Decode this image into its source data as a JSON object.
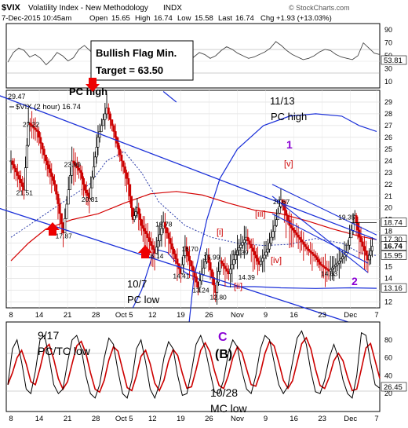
{
  "header": {
    "symbol": "$VIX",
    "name": "Volatility Index - New Methodology",
    "exchange": "INDX",
    "datetime": "7-Dec-2015 10:45am",
    "open_label": "Open",
    "open": "15.65",
    "high_label": "High",
    "high": "16.74",
    "low_label": "Low",
    "low": "15.58",
    "last_label": "Last",
    "last": "16.74",
    "chg_label": "Chg",
    "chg": "+1.93 (+13.03%)",
    "brand": "© StockCharts.com"
  },
  "rsi_panel": {
    "ticks": [
      "90",
      "70",
      "50",
      "30",
      "10"
    ],
    "last_value": "53.81",
    "annotation_line1": "Bullish Flag Min.",
    "annotation_line2": "Target = 63.50"
  },
  "legend": {
    "main": "$VIX (2 hour) 16.74",
    "top_left_value": "29.47"
  },
  "annotations": {
    "pc_high_left": "PC high",
    "pc_high_right_1": "11/13",
    "pc_high_right_2": "PC high",
    "wave_1": "1",
    "wave_2": "2",
    "wave_c": "C",
    "pc_low_1": "10/7",
    "pc_low_2": "PC low",
    "pc_tc_1": "9/17",
    "pc_tc_2": "PC/TC low",
    "b_label": "(B)",
    "mc_low_1": "10/28",
    "mc_low_2": "MC low",
    "wave_v": "[v]",
    "wave_iii": "[iii]",
    "wave_i": "[i]",
    "wave_iv": "[iv]",
    "wave_ii": "[ii]"
  },
  "colors": {
    "candle": "#000000",
    "down_candle": "#cc0000",
    "ma_red": "#d40000",
    "band_blue": "#1a2fd8",
    "trend_blue": "#1a2fd8",
    "wave_purple": "#8a00d4",
    "wave_red": "#cc0000",
    "arrow_red": "#ee0000",
    "grid": "#d0d0d0"
  },
  "chart_data": {
    "type": "line",
    "title": "$VIX (2 hour)",
    "y_ticks": [
      29,
      28,
      27,
      26,
      25,
      24,
      23,
      22,
      21,
      20,
      19,
      18,
      17,
      16,
      15,
      14,
      13,
      12
    ],
    "ylim": [
      11.5,
      30
    ],
    "x_ticks": [
      "8",
      "14",
      "21",
      "28",
      "Oct 5",
      "12",
      "19",
      "26",
      "Nov",
      "9",
      "16",
      "23",
      "Dec",
      "7"
    ],
    "series": [
      {
        "name": "VIX",
        "x": [
          0,
          3,
          4,
          6,
          8,
          9,
          10,
          12,
          14,
          16,
          17,
          18,
          19,
          20,
          22,
          24,
          25,
          27,
          28,
          29,
          30,
          31,
          33,
          35,
          37,
          39,
          40,
          41,
          43,
          45,
          47,
          48,
          50,
          52,
          54,
          56,
          57,
          59,
          61,
          62,
          64,
          66,
          68,
          70,
          71,
          73,
          75,
          77,
          79,
          80,
          82,
          83
        ],
        "values": [
          24,
          21.51,
          27.22,
          26.5,
          24,
          23,
          22,
          17.87,
          23.99,
          23,
          21.5,
          20.81,
          23.5,
          26,
          28.5,
          26,
          24.5,
          22,
          19,
          20,
          18.5,
          17.8,
          16.14,
          18.78,
          16.5,
          14.41,
          16.7,
          15.5,
          13.24,
          15.99,
          12.8,
          15.5,
          14.39,
          16.39,
          17.5,
          16,
          15.2,
          16.5,
          19,
          20.67,
          18.5,
          17.5,
          16.5,
          15.8,
          15.2,
          14.63,
          15.3,
          16.2,
          19.35,
          17.5,
          15.58,
          16.74
        ]
      }
    ],
    "value_labels": [
      "29.47",
      "27.22",
      "23.99",
      "21.51",
      "17.87",
      "20.81",
      "18.78",
      "16.14",
      "16.70",
      "15.99",
      "14.41",
      "13.24",
      "12.80",
      "16.39",
      "14.39",
      "20.67",
      "19.35",
      "14.63"
    ],
    "right_labels": [
      "18.74",
      "17.30",
      "16.74",
      "15.95",
      "13.16"
    ]
  },
  "oscillator": {
    "ticks": [
      "80",
      "60",
      "40",
      "20"
    ],
    "last_value": "26.45"
  }
}
